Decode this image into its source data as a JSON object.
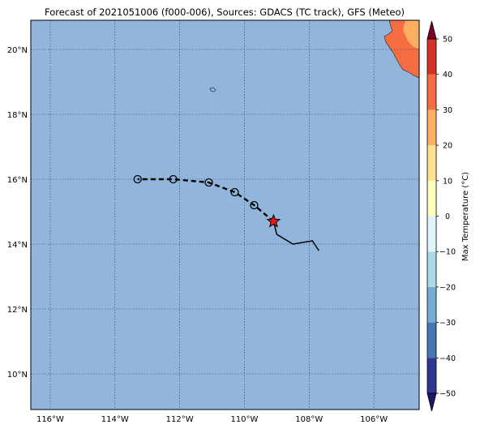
{
  "title": "Forecast of 2021051006 (f000-006), Sources: GDACS (TC track), GFS (Meteo)",
  "map": {
    "ocean_color": "#92b5db",
    "land_color": "#f46d43",
    "lon_ticks": [
      {
        "value": -116,
        "label": "116°W"
      },
      {
        "value": -114,
        "label": "114°W"
      },
      {
        "value": -112,
        "label": "112°W"
      },
      {
        "value": -110,
        "label": "110°W"
      },
      {
        "value": -108,
        "label": "108°W"
      },
      {
        "value": -106,
        "label": "106°W"
      }
    ],
    "lat_ticks": [
      {
        "value": 10,
        "label": "10°N"
      },
      {
        "value": 12,
        "label": "12°N"
      },
      {
        "value": 14,
        "label": "14°N"
      },
      {
        "value": 16,
        "label": "16°N"
      },
      {
        "value": 18,
        "label": "18°N"
      },
      {
        "value": 20,
        "label": "20°N"
      }
    ],
    "extent": {
      "lon_min": -116.6,
      "lon_max": -104.6,
      "lat_min": 8.9,
      "lat_max": 20.9
    }
  },
  "tracks": {
    "past_track": [
      {
        "lon": -107.7,
        "lat": 13.8
      },
      {
        "lon": -107.9,
        "lat": 14.1
      },
      {
        "lon": -108.5,
        "lat": 14.0
      },
      {
        "lon": -109.0,
        "lat": 14.3
      },
      {
        "lon": -109.1,
        "lat": 14.7
      }
    ],
    "current_position": {
      "lon": -109.1,
      "lat": 14.7
    },
    "forecast_track": [
      {
        "lon": -109.1,
        "lat": 14.7
      },
      {
        "lon": -109.7,
        "lat": 15.2
      },
      {
        "lon": -110.3,
        "lat": 15.6
      },
      {
        "lon": -111.1,
        "lat": 15.9
      },
      {
        "lon": -112.2,
        "lat": 16.0
      },
      {
        "lon": -113.3,
        "lat": 16.0
      }
    ],
    "forecast_points": [
      {
        "lon": -109.7,
        "lat": 15.2
      },
      {
        "lon": -110.3,
        "lat": 15.6
      },
      {
        "lon": -111.1,
        "lat": 15.9
      },
      {
        "lon": -112.2,
        "lat": 16.0
      },
      {
        "lon": -113.3,
        "lat": 16.0
      }
    ]
  },
  "colorbar": {
    "label": "Max Temperature (°C)",
    "ticks": [
      -50,
      -40,
      -30,
      -20,
      -10,
      0,
      10,
      20,
      30,
      40,
      50
    ],
    "tick_labels": [
      "−50",
      "−40",
      "−30",
      "−20",
      "−10",
      "0",
      "10",
      "20",
      "30",
      "40",
      "50"
    ],
    "colors": [
      "#313695",
      "#4575b4",
      "#74add1",
      "#abd9e9",
      "#e0f3f8",
      "#ffffbf",
      "#fee090",
      "#fdae61",
      "#f46d43",
      "#d73027",
      "#a50026"
    ],
    "under_color": "#1a1a66",
    "over_color": "#7a0026"
  }
}
